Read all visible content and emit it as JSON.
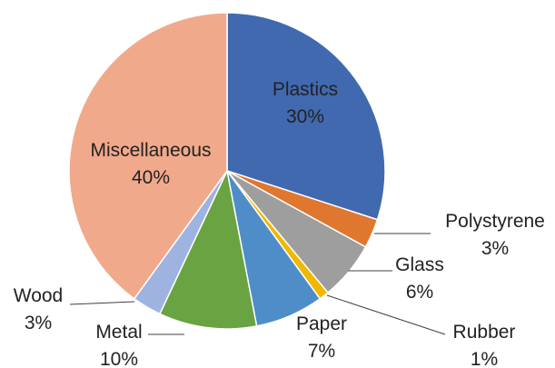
{
  "chart_data": {
    "type": "pie",
    "title": "",
    "start_angle_deg": 0,
    "direction": "clockwise",
    "slices": [
      {
        "label": "Plastics",
        "value": 30,
        "value_label": "30%",
        "color": "#4169b0"
      },
      {
        "label": "Polystyrene",
        "value": 3,
        "value_label": "3%",
        "color": "#e0772f"
      },
      {
        "label": "Glass",
        "value": 6,
        "value_label": "6%",
        "color": "#9e9e9e"
      },
      {
        "label": "Rubber",
        "value": 1,
        "value_label": "1%",
        "color": "#f0b800"
      },
      {
        "label": "Paper",
        "value": 7,
        "value_label": "7%",
        "color": "#4f8dc9"
      },
      {
        "label": "Metal",
        "value": 10,
        "value_label": "10%",
        "color": "#6aa342"
      },
      {
        "label": "Wood",
        "value": 3,
        "value_label": "3%",
        "color": "#9fb3e0"
      },
      {
        "label": "Miscellaneous",
        "value": 40,
        "value_label": "40%",
        "color": "#f1a98b"
      }
    ],
    "legend": "none"
  }
}
